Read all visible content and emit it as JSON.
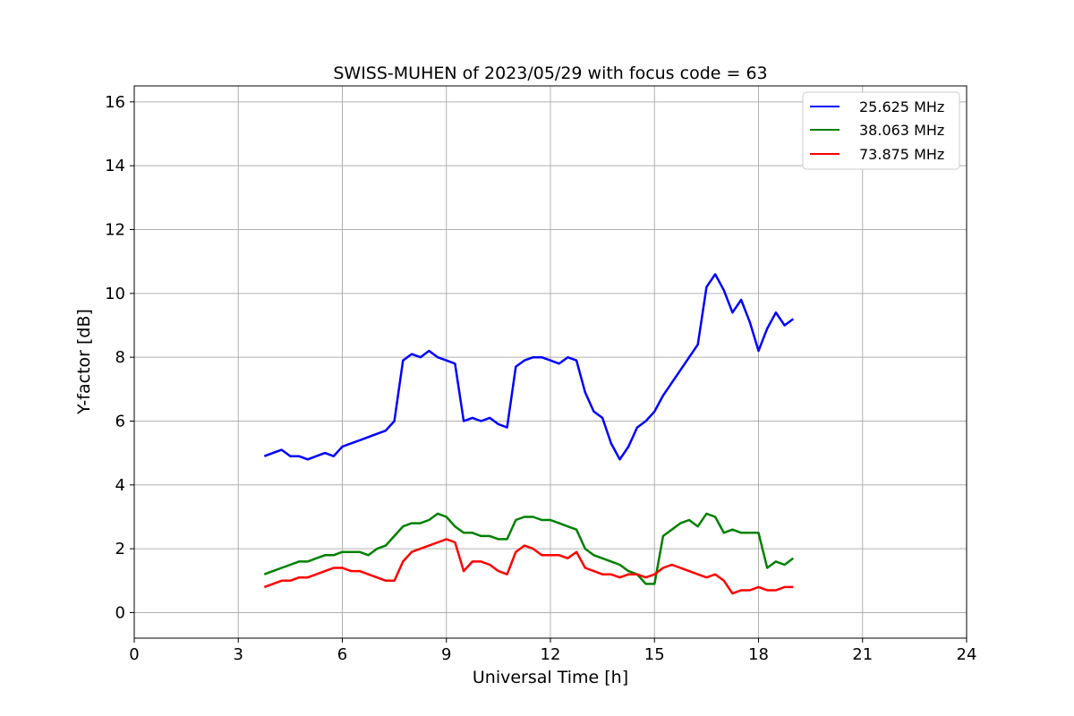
{
  "chart_data": {
    "type": "line",
    "title": "SWISS-MUHEN of 2023/05/29 with focus code = 63",
    "xlabel": "Universal Time [h]",
    "ylabel": "Y-factor [dB]",
    "xlim": [
      0,
      24
    ],
    "ylim": [
      -0.8,
      16.5
    ],
    "xticks": [
      0,
      3,
      6,
      9,
      12,
      15,
      18,
      21,
      24
    ],
    "yticks": [
      0,
      2,
      4,
      6,
      8,
      10,
      12,
      14,
      16
    ],
    "grid": true,
    "legend_position": "top-right",
    "x": [
      3.75,
      4.0,
      4.25,
      4.5,
      4.75,
      5.0,
      5.25,
      5.5,
      5.75,
      6.0,
      6.25,
      6.5,
      6.75,
      7.0,
      7.25,
      7.5,
      7.75,
      8.0,
      8.25,
      8.5,
      8.75,
      9.0,
      9.25,
      9.5,
      9.75,
      10.0,
      10.25,
      10.5,
      10.75,
      11.0,
      11.25,
      11.5,
      11.75,
      12.0,
      12.25,
      12.5,
      12.75,
      13.0,
      13.25,
      13.5,
      13.75,
      14.0,
      14.25,
      14.5,
      14.75,
      15.0,
      15.25,
      15.5,
      15.75,
      16.0,
      16.25,
      16.5,
      16.75,
      17.0,
      17.25,
      17.5,
      17.75,
      18.0,
      18.25,
      18.5,
      18.75,
      19.0
    ],
    "series": [
      {
        "name": "25.625 MHz",
        "color": "#0000ff",
        "values": [
          4.9,
          5.0,
          5.1,
          4.9,
          4.9,
          4.8,
          4.9,
          5.0,
          4.9,
          5.2,
          5.3,
          5.4,
          5.5,
          5.6,
          5.7,
          6.0,
          7.9,
          8.1,
          8.0,
          8.2,
          8.0,
          7.9,
          7.8,
          6.0,
          6.1,
          6.0,
          6.1,
          5.9,
          5.8,
          7.7,
          7.9,
          8.0,
          8.0,
          7.9,
          7.8,
          8.0,
          7.9,
          6.9,
          6.3,
          6.1,
          5.3,
          4.8,
          5.2,
          5.8,
          6.0,
          6.3,
          6.8,
          7.2,
          7.6,
          8.0,
          8.4,
          10.2,
          10.6,
          10.1,
          9.4,
          9.8,
          9.1,
          8.2,
          8.9,
          9.4,
          9.0,
          9.2
        ]
      },
      {
        "name": "38.063 MHz",
        "color": "#008000",
        "values": [
          1.2,
          1.3,
          1.4,
          1.5,
          1.6,
          1.6,
          1.7,
          1.8,
          1.8,
          1.9,
          1.9,
          1.9,
          1.8,
          2.0,
          2.1,
          2.4,
          2.7,
          2.8,
          2.8,
          2.9,
          3.1,
          3.0,
          2.7,
          2.5,
          2.5,
          2.4,
          2.4,
          2.3,
          2.3,
          2.9,
          3.0,
          3.0,
          2.9,
          2.9,
          2.8,
          2.7,
          2.6,
          2.0,
          1.8,
          1.7,
          1.6,
          1.5,
          1.3,
          1.2,
          0.9,
          0.9,
          2.4,
          2.6,
          2.8,
          2.9,
          2.7,
          3.1,
          3.0,
          2.5,
          2.6,
          2.5,
          2.5,
          2.5,
          1.4,
          1.6,
          1.5,
          1.7
        ]
      },
      {
        "name": "73.875 MHz",
        "color": "#ff0000",
        "values": [
          0.8,
          0.9,
          1.0,
          1.0,
          1.1,
          1.1,
          1.2,
          1.3,
          1.4,
          1.4,
          1.3,
          1.3,
          1.2,
          1.1,
          1.0,
          1.0,
          1.6,
          1.9,
          2.0,
          2.1,
          2.2,
          2.3,
          2.2,
          1.3,
          1.6,
          1.6,
          1.5,
          1.3,
          1.2,
          1.9,
          2.1,
          2.0,
          1.8,
          1.8,
          1.8,
          1.7,
          1.9,
          1.4,
          1.3,
          1.2,
          1.2,
          1.1,
          1.2,
          1.2,
          1.1,
          1.2,
          1.4,
          1.5,
          1.4,
          1.3,
          1.2,
          1.1,
          1.2,
          1.0,
          0.6,
          0.7,
          0.7,
          0.8,
          0.7,
          0.7,
          0.8,
          0.8
        ]
      }
    ]
  }
}
